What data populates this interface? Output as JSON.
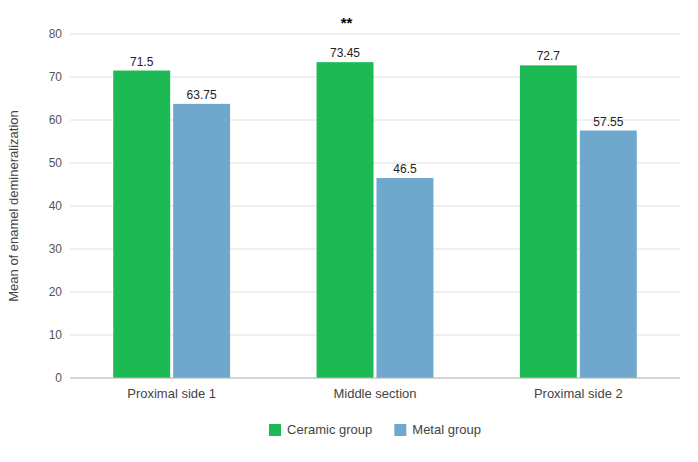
{
  "chart_data": {
    "type": "bar",
    "categories": [
      "Proximal side 1",
      "Middle section",
      "Proximal side 2"
    ],
    "series": [
      {
        "name": "Ceramic group",
        "color": "#1db954",
        "values": [
          71.5,
          73.45,
          72.7
        ]
      },
      {
        "name": "Metal group",
        "color": "#6fa8cc",
        "values": [
          63.75,
          46.5,
          57.55
        ]
      }
    ],
    "ylabel": "Mean of enamel demineralization",
    "ylim": [
      0,
      80
    ],
    "yticks": [
      0,
      10,
      20,
      30,
      40,
      50,
      60,
      70,
      80
    ],
    "annotations": [
      {
        "text": "**",
        "x": "Middle section"
      }
    ],
    "grid": true,
    "legend": "bottom",
    "data_labels": true
  }
}
